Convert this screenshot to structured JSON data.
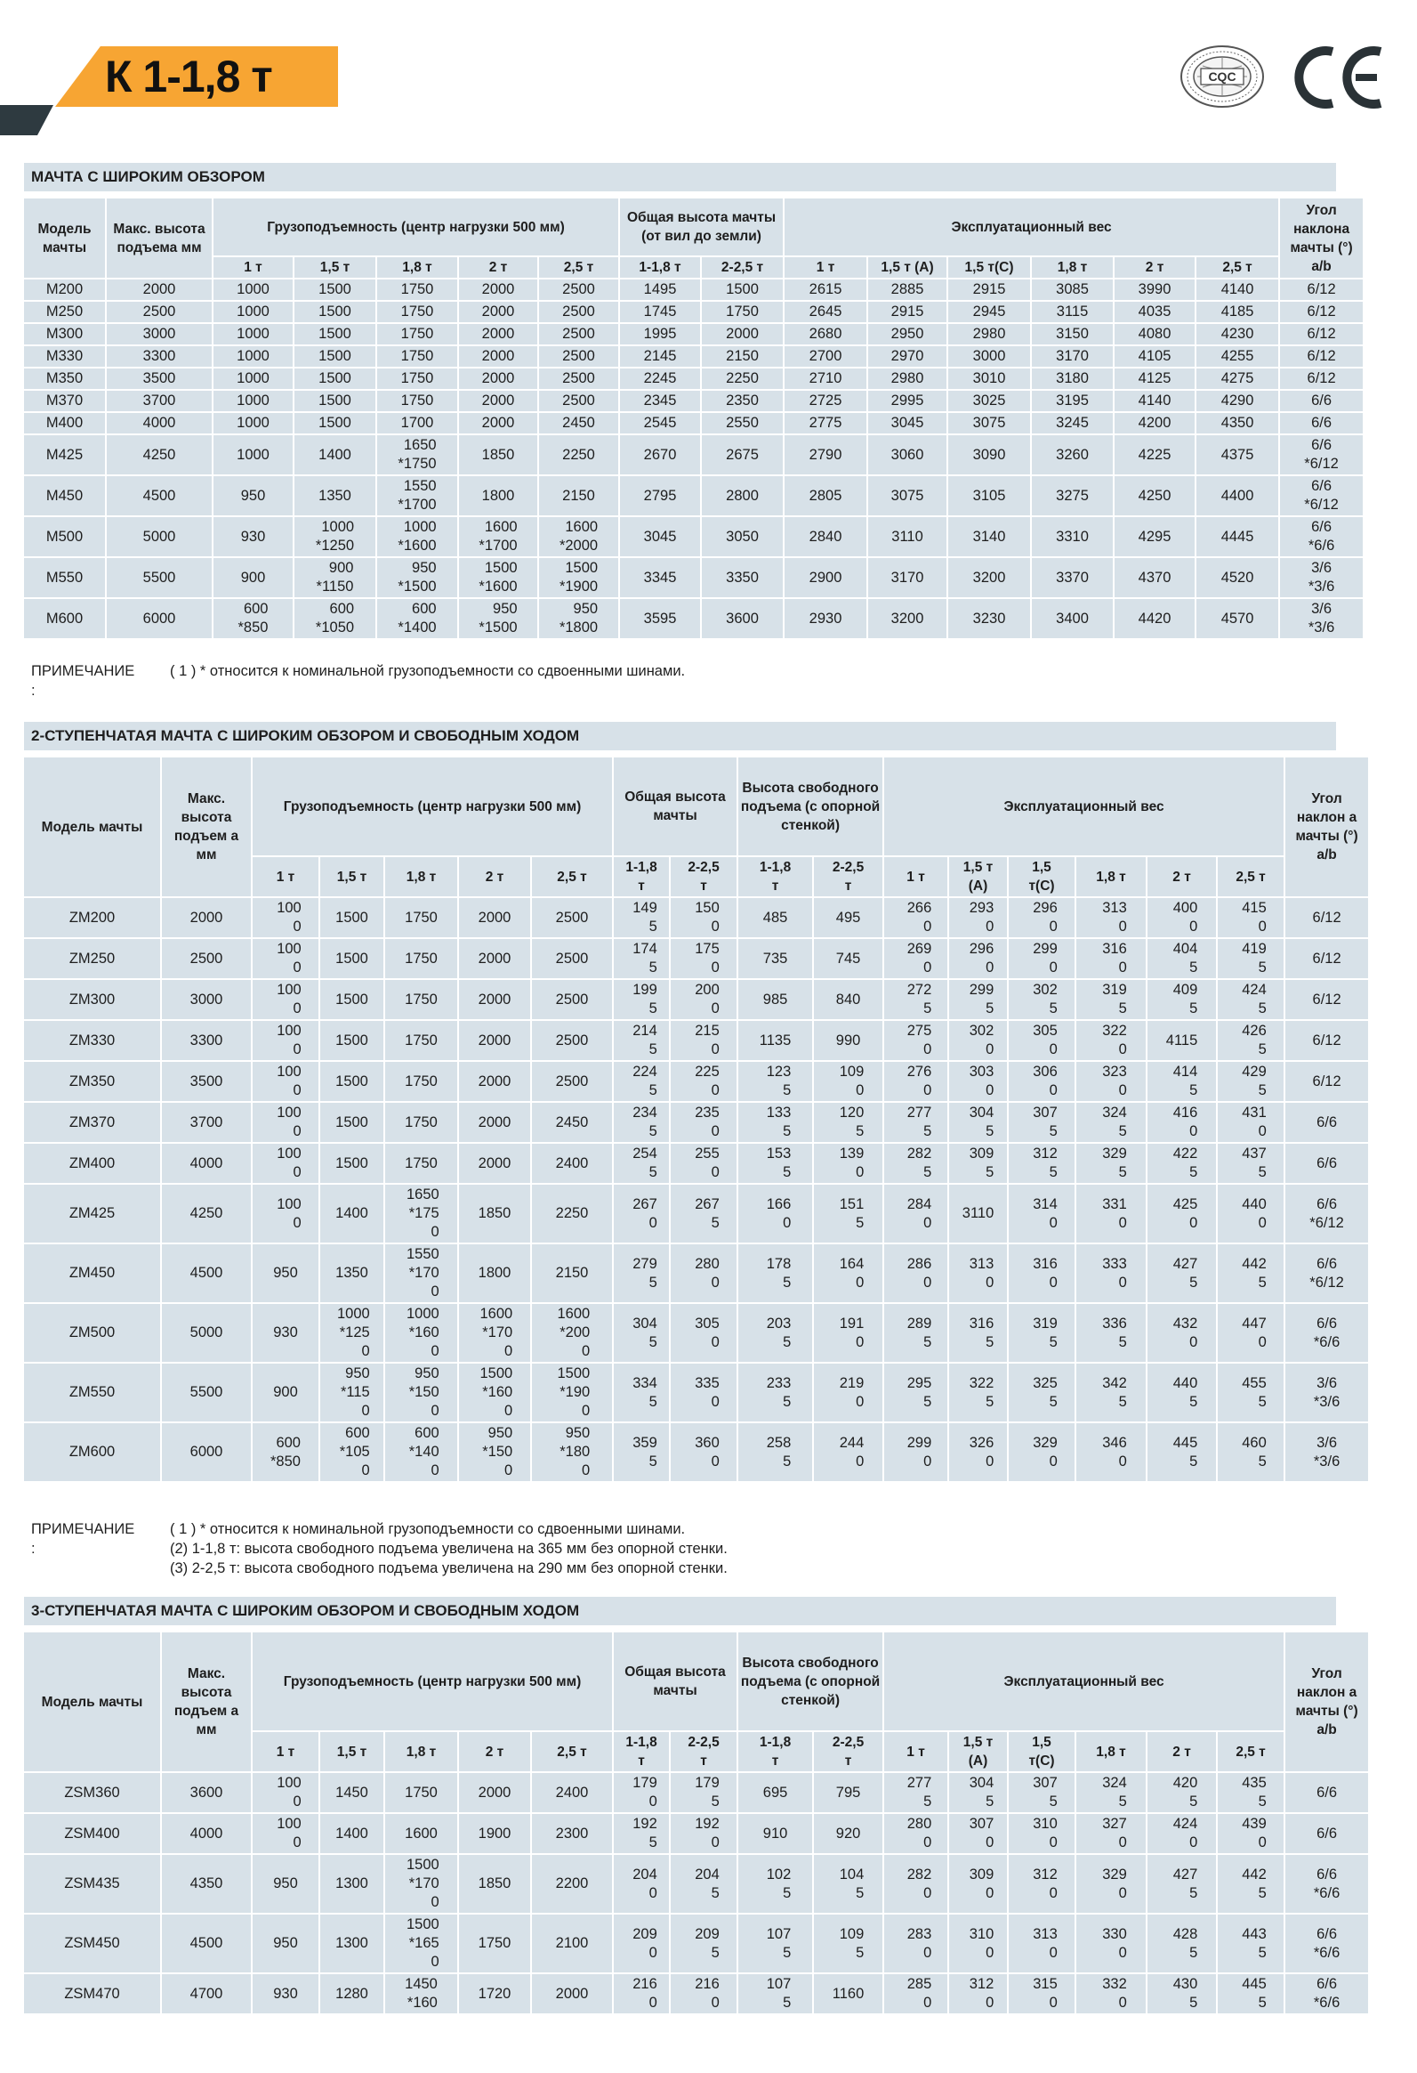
{
  "header": {
    "title": "К 1-1,8 т",
    "logos": {
      "cqc": "CQC",
      "ce": "CE"
    }
  },
  "sections": [
    {
      "title": "МАЧТА С ШИРОКИМ ОБЗОРОМ",
      "columns": {
        "model": "Модель мачты",
        "max_height": "Макс. высота подъема мм",
        "capacity_group": "Грузоподъемность (центр нагрузки 500 мм)",
        "capacity_cols": [
          "1 т",
          "1,5 т",
          "1,8 т",
          "2 т",
          "2,5 т"
        ],
        "height_group": "Общая высота мачты (от вил до земли)",
        "height_cols": [
          "1-1,8 т",
          "2-2,5 т"
        ],
        "weight_group": "Эксплуатационный вес",
        "weight_cols": [
          "1 т",
          "1,5 т (A)",
          "1,5 т(C)",
          "1,8 т",
          "2 т",
          "2,5 т"
        ],
        "angle": "Угол наклона мачты (°) a/b"
      },
      "rows": [
        [
          "M200",
          "2000",
          "1000",
          "1500",
          "1750",
          "2000",
          "2500",
          "1495",
          "1500",
          "2615",
          "2885",
          "2915",
          "3085",
          "3990",
          "4140",
          "6/12"
        ],
        [
          "M250",
          "2500",
          "1000",
          "1500",
          "1750",
          "2000",
          "2500",
          "1745",
          "1750",
          "2645",
          "2915",
          "2945",
          "3115",
          "4035",
          "4185",
          "6/12"
        ],
        [
          "M300",
          "3000",
          "1000",
          "1500",
          "1750",
          "2000",
          "2500",
          "1995",
          "2000",
          "2680",
          "2950",
          "2980",
          "3150",
          "4080",
          "4230",
          "6/12"
        ],
        [
          "M330",
          "3300",
          "1000",
          "1500",
          "1750",
          "2000",
          "2500",
          "2145",
          "2150",
          "2700",
          "2970",
          "3000",
          "3170",
          "4105",
          "4255",
          "6/12"
        ],
        [
          "M350",
          "3500",
          "1000",
          "1500",
          "1750",
          "2000",
          "2500",
          "2245",
          "2250",
          "2710",
          "2980",
          "3010",
          "3180",
          "4125",
          "4275",
          "6/12"
        ],
        [
          "M370",
          "3700",
          "1000",
          "1500",
          "1750",
          "2000",
          "2500",
          "2345",
          "2350",
          "2725",
          "2995",
          "3025",
          "3195",
          "4140",
          "4290",
          "6/6"
        ],
        [
          "M400",
          "4000",
          "1000",
          "1500",
          "1700",
          "2000",
          "2450",
          "2545",
          "2550",
          "2775",
          "3045",
          "3075",
          "3245",
          "4200",
          "4350",
          "6/6"
        ],
        [
          "M425",
          "4250",
          "1000",
          "1400",
          "1650\n*1750",
          "1850",
          "2250",
          "2670",
          "2675",
          "2790",
          "3060",
          "3090",
          "3260",
          "4225",
          "4375",
          "6/6\n*6/12"
        ],
        [
          "M450",
          "4500",
          "950",
          "1350",
          "1550\n*1700",
          "1800",
          "2150",
          "2795",
          "2800",
          "2805",
          "3075",
          "3105",
          "3275",
          "4250",
          "4400",
          "6/6\n*6/12"
        ],
        [
          "M500",
          "5000",
          "930",
          "1000\n*1250",
          "1000\n*1600",
          "1600\n*1700",
          "1600\n*2000",
          "3045",
          "3050",
          "2840",
          "3110",
          "3140",
          "3310",
          "4295",
          "4445",
          "6/6\n*6/6"
        ],
        [
          "M550",
          "5500",
          "900",
          "900\n*1150",
          "950\n*1500",
          "1500\n*1600",
          "1500\n*1900",
          "3345",
          "3350",
          "2900",
          "3170",
          "3200",
          "3370",
          "4370",
          "4520",
          "3/6\n*3/6"
        ],
        [
          "M600",
          "6000",
          "600\n*850",
          "600\n*1050",
          "600\n*1400",
          "950\n*1500",
          "950\n*1800",
          "3595",
          "3600",
          "2930",
          "3200",
          "3230",
          "3400",
          "4420",
          "4570",
          "3/6\n*3/6"
        ]
      ],
      "note": {
        "label": "ПРИМЕЧАНИЕ",
        "colon": ":",
        "lines": [
          "( 1 ) * относится к номинальной грузоподъемности со сдвоенными шинами."
        ]
      }
    },
    {
      "title": "2-СТУПЕНЧАТАЯ МАЧТА С ШИРОКИМ ОБЗОРОМ И СВОБОДНЫМ ХОДОМ",
      "columns": {
        "model": "Модель мачты",
        "max_height": "Макс. высота подъем а мм",
        "capacity_group": "Грузоподъемность (центр нагрузки 500 мм)",
        "capacity_cols": [
          "1 т",
          "1,5 т",
          "1,8 т",
          "2 т",
          "2,5 т"
        ],
        "height_group": "Общая высота мачты",
        "height_cols": [
          "1-1,8 т",
          "2-2,5 т"
        ],
        "freelift_group": "Высота свободного подъема (с опорной стенкой)",
        "freelift_cols": [
          "1-1,8 т",
          "2-2,5 т"
        ],
        "weight_group": "Эксплуатационный вес",
        "weight_cols": [
          "1 т",
          "1,5 т (A)",
          "1,5 т(C)",
          "1,8 т",
          "2 т",
          "2,5 т"
        ],
        "angle": "Угол наклон а мачты (°) a/b"
      },
      "rows": [
        [
          "ZM200",
          "2000",
          "1000",
          "1500",
          "1750",
          "2000",
          "2500",
          "1495",
          "1500",
          "485",
          "495",
          "2660",
          "2930",
          "2960",
          "3130",
          "4000",
          "4150",
          "6/12"
        ],
        [
          "ZM250",
          "2500",
          "1000",
          "1500",
          "1750",
          "2000",
          "2500",
          "1745",
          "1750",
          "735",
          "745",
          "2690",
          "2960",
          "2990",
          "3160",
          "4045",
          "4195",
          "6/12"
        ],
        [
          "ZM300",
          "3000",
          "1000",
          "1500",
          "1750",
          "2000",
          "2500",
          "1995",
          "2000",
          "985",
          "840",
          "2725",
          "2995",
          "3025",
          "3195",
          "4095",
          "4245",
          "6/12"
        ],
        [
          "ZM330",
          "3300",
          "1000",
          "1500",
          "1750",
          "2000",
          "2500",
          "2145",
          "2150",
          "1135",
          "990",
          "2750",
          "3020",
          "3050",
          "3220",
          "4115",
          "4265",
          "6/12"
        ],
        [
          "ZM350",
          "3500",
          "1000",
          "1500",
          "1750",
          "2000",
          "2500",
          "2245",
          "2250",
          "1235",
          "1090",
          "2760",
          "3030",
          "3060",
          "3230",
          "4145",
          "4295",
          "6/12"
        ],
        [
          "ZM370",
          "3700",
          "1000",
          "1500",
          "1750",
          "2000",
          "2450",
          "2345",
          "2350",
          "1335",
          "1205",
          "2775",
          "3045",
          "3075",
          "3245",
          "4160",
          "4310",
          "6/6"
        ],
        [
          "ZM400",
          "4000",
          "1000",
          "1500",
          "1750",
          "2000",
          "2400",
          "2545",
          "2550",
          "1535",
          "1390",
          "2825",
          "3095",
          "3125",
          "3295",
          "4225",
          "4375",
          "6/6"
        ],
        [
          "ZM425",
          "4250",
          "1000",
          "1400",
          "1650\n*1750",
          "1850",
          "2250",
          "2670",
          "2675",
          "1660",
          "1515",
          "2840",
          "3110",
          "3140",
          "3310",
          "4250",
          "4400",
          "6/6\n*6/12"
        ],
        [
          "ZM450",
          "4500",
          "950",
          "1350",
          "1550\n*1700",
          "1800",
          "2150",
          "2795",
          "2800",
          "1785",
          "1640",
          "2860",
          "3130",
          "3160",
          "3330",
          "4275",
          "4425",
          "6/6\n*6/12"
        ],
        [
          "ZM500",
          "5000",
          "930",
          "1000\n*1250",
          "1000\n*1600",
          "1600\n*1700",
          "1600\n*2000",
          "3045",
          "3050",
          "2035",
          "1910",
          "2895",
          "3165",
          "3195",
          "3365",
          "4320",
          "4470",
          "6/6\n*6/6"
        ],
        [
          "ZM550",
          "5500",
          "900",
          "950\n*1150",
          "950\n*1500",
          "1500\n*1600",
          "1500\n*1900",
          "3345",
          "3350",
          "2335",
          "2190",
          "2955",
          "3225",
          "3255",
          "3425",
          "4405",
          "4555",
          "3/6\n*3/6"
        ],
        [
          "ZM600",
          "6000",
          "600\n*850",
          "600\n*1050",
          "600\n*1400",
          "950\n*1500",
          "950\n*1800",
          "3595",
          "3600",
          "2585",
          "2440",
          "2990",
          "3260",
          "3290",
          "3460",
          "4455",
          "4605",
          "3/6\n*3/6"
        ]
      ],
      "note": {
        "label": "ПРИМЕЧАНИЕ",
        "colon": ":",
        "lines": [
          "( 1 ) * относится к номинальной грузоподъемности со сдвоенными шинами.",
          "(2) 1-1,8 т: высота свободного подъема увеличена на 365 мм без опорной стенки.",
          "(3) 2-2,5 т: высота свободного подъема увеличена на 290 мм без опорной стенки."
        ]
      }
    },
    {
      "title": "3-СТУПЕНЧАТАЯ МАЧТА С ШИРОКИМ ОБЗОРОМ И СВОБОДНЫМ ХОДОМ",
      "columns": {
        "model": "Модель мачты",
        "max_height": "Макс. высота подъем а мм",
        "capacity_group": "Грузоподъемность (центр нагрузки 500 мм)",
        "capacity_cols": [
          "1 т",
          "1,5 т",
          "1,8 т",
          "2 т",
          "2,5 т"
        ],
        "height_group": "Общая высота мачты",
        "height_cols": [
          "1-1,8 т",
          "2-2,5 т"
        ],
        "freelift_group": "Высота свободного подъема (с опорной стенкой)",
        "freelift_cols": [
          "1-1,8 т",
          "2-2,5 т"
        ],
        "weight_group": "Эксплуатационный вес",
        "weight_cols": [
          "1 т",
          "1,5 т (A)",
          "1,5 т(C)",
          "1,8 т",
          "2 т",
          "2,5 т"
        ],
        "angle": "Угол наклон а мачты (°) a/b"
      },
      "rows": [
        [
          "ZSM360",
          "3600",
          "1000",
          "1450",
          "1750",
          "2000",
          "2400",
          "1790",
          "1795",
          "695",
          "795",
          "2775",
          "3045",
          "3075",
          "3245",
          "4205",
          "4355",
          "6/6"
        ],
        [
          "ZSM400",
          "4000",
          "1000",
          "1400",
          "1600",
          "1900",
          "2300",
          "1925",
          "1920",
          "910",
          "920",
          "2800",
          "3070",
          "3100",
          "3270",
          "4240",
          "4390",
          "6/6"
        ],
        [
          "ZSM435",
          "4350",
          "950",
          "1300",
          "1500\n*1700",
          "1850",
          "2200",
          "2040",
          "2045",
          "1025",
          "1045",
          "2820",
          "3090",
          "3120",
          "3290",
          "4275",
          "4425",
          "6/6\n*6/6"
        ],
        [
          "ZSM450",
          "4500",
          "950",
          "1300",
          "1500\n*1650",
          "1750",
          "2100",
          "2090",
          "2095",
          "1075",
          "1095",
          "2830",
          "3100",
          "3130",
          "3300",
          "4285",
          "4435",
          "6/6\n*6/6"
        ],
        [
          "ZSM470",
          "4700",
          "930",
          "1280",
          "1450\n*160",
          "1720",
          "2000",
          "2160",
          "2160",
          "1075",
          "1160",
          "2850",
          "3120",
          "3150",
          "3320",
          "4305",
          "4455",
          "6/6\n*6/6"
        ]
      ]
    }
  ]
}
